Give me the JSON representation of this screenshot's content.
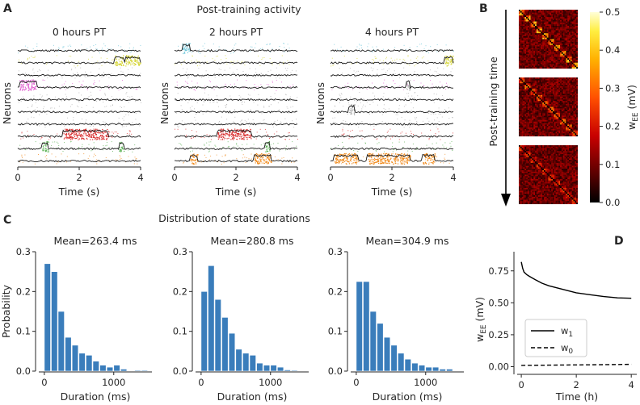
{
  "figure": {
    "panels": {
      "a": "A",
      "b": "B",
      "c": "C",
      "d": "D"
    },
    "a_title": "Post-training activity",
    "c_title": "Distribution of state durations",
    "b_axis_label": "Post-training time",
    "b_colorbar_label": "w",
    "b_colorbar_sub": "EE",
    "b_colorbar_unit": " (mV)"
  },
  "colors": {
    "bar": "#3a7dbb",
    "trace": "#1a1a1a",
    "assemblies": [
      "#6ec6d9",
      "#d6d63a",
      "#e060d0",
      "#d82828",
      "#58b050",
      "#f08a1c",
      "#8fbde0",
      "#b0b0b0"
    ]
  },
  "chart_data": [
    {
      "type": "raster",
      "panel": "A",
      "title": "0 hours PT",
      "xlabel": "Time (s)",
      "ylabel": "Neurons",
      "xlim": [
        0,
        4
      ],
      "xticks": [
        "0",
        "2",
        "4"
      ],
      "assembly_activations": [
        {
          "row": 1,
          "assembly": 1,
          "start": 3.15,
          "end": 3.45
        },
        {
          "row": 1,
          "assembly": 1,
          "start": 3.5,
          "end": 4.0
        },
        {
          "row": 3,
          "assembly": 2,
          "start": 0.05,
          "end": 0.6
        },
        {
          "row": 7,
          "assembly": 3,
          "start": 1.45,
          "end": 2.95
        },
        {
          "row": 8,
          "assembly": 4,
          "start": 0.8,
          "end": 1.0
        },
        {
          "row": 8,
          "assembly": 4,
          "start": 3.3,
          "end": 3.45
        }
      ]
    },
    {
      "type": "raster",
      "panel": "A",
      "title": "2 hours PT",
      "xlabel": "Time (s)",
      "ylabel": "Neurons",
      "xlim": [
        0,
        4
      ],
      "xticks": [
        "0",
        "2",
        "4"
      ],
      "assembly_activations": [
        {
          "row": 0,
          "assembly": 0,
          "start": 0.25,
          "end": 0.5
        },
        {
          "row": 7,
          "assembly": 3,
          "start": 1.4,
          "end": 2.5
        },
        {
          "row": 8,
          "assembly": 4,
          "start": 2.95,
          "end": 3.1
        },
        {
          "row": 9,
          "assembly": 5,
          "start": 0.5,
          "end": 0.75
        },
        {
          "row": 9,
          "assembly": 5,
          "start": 2.6,
          "end": 3.15
        }
      ]
    },
    {
      "type": "raster",
      "panel": "A",
      "title": "4 hours PT",
      "xlabel": "Time (s)",
      "ylabel": "Neurons",
      "xlim": [
        0,
        4
      ],
      "xticks": [
        "0",
        "2",
        "4"
      ],
      "assembly_activations": [
        {
          "row": 1,
          "assembly": 1,
          "start": 3.7,
          "end": 4.0
        },
        {
          "row": 3,
          "assembly": 7,
          "start": 2.45,
          "end": 2.6
        },
        {
          "row": 5,
          "assembly": 7,
          "start": 0.6,
          "end": 0.8
        },
        {
          "row": 9,
          "assembly": 5,
          "start": 0.1,
          "end": 0.9
        },
        {
          "row": 9,
          "assembly": 5,
          "start": 1.2,
          "end": 2.6
        },
        {
          "row": 9,
          "assembly": 5,
          "start": 3.0,
          "end": 3.4
        }
      ]
    },
    {
      "type": "heatmap",
      "panel": "B",
      "description_rows": [
        "early",
        "middle",
        "late"
      ],
      "num_assemblies": 10,
      "colorbar": {
        "min": 0.0,
        "max": 0.5,
        "ticks": [
          "0.0",
          "0.1",
          "0.2",
          "0.3",
          "0.4",
          "0.5"
        ]
      },
      "within_assembly_weight": [
        0.38,
        0.3,
        0.24
      ],
      "background_weight": 0.1
    },
    {
      "type": "bar",
      "panel": "C",
      "title": "Mean=263.4 ms",
      "xlabel": "Duration (ms)",
      "ylabel": "Probability",
      "bin_width_ms": 100,
      "x": [
        50,
        150,
        250,
        350,
        450,
        550,
        650,
        750,
        850,
        950,
        1050,
        1150,
        1250,
        1350,
        1450
      ],
      "values": [
        0.27,
        0.25,
        0.15,
        0.085,
        0.065,
        0.045,
        0.04,
        0.025,
        0.015,
        0.01,
        0.015,
        0.005,
        0.0,
        0.002,
        0.002
      ],
      "xlim": [
        -80,
        1550
      ],
      "ylim": [
        0,
        0.3
      ],
      "xticks": [
        "0",
        "1000"
      ],
      "yticks": [
        "0.0",
        "0.1",
        "0.2",
        "0.3"
      ]
    },
    {
      "type": "bar",
      "panel": "C",
      "title": "Mean=280.8 ms",
      "xlabel": "Duration (ms)",
      "ylabel": "",
      "bin_width_ms": 100,
      "x": [
        50,
        150,
        250,
        350,
        450,
        550,
        650,
        750,
        850,
        950,
        1050,
        1150,
        1250,
        1350
      ],
      "values": [
        0.2,
        0.265,
        0.18,
        0.135,
        0.095,
        0.055,
        0.045,
        0.04,
        0.02,
        0.015,
        0.015,
        0.01,
        0.003,
        0.002
      ],
      "xlim": [
        -80,
        1550
      ],
      "ylim": [
        0,
        0.3
      ],
      "xticks": [
        "0",
        "1000"
      ],
      "yticks": [
        "0.0",
        "0.1",
        "0.2",
        "0.3"
      ]
    },
    {
      "type": "bar",
      "panel": "C",
      "title": "Mean=304.9 ms",
      "xlabel": "Duration (ms)",
      "ylabel": "",
      "bin_width_ms": 100,
      "x": [
        50,
        150,
        250,
        350,
        450,
        550,
        650,
        750,
        850,
        950,
        1050,
        1150,
        1250,
        1350
      ],
      "values": [
        0.225,
        0.225,
        0.15,
        0.12,
        0.085,
        0.065,
        0.045,
        0.03,
        0.02,
        0.015,
        0.01,
        0.01,
        0.005,
        0.005
      ],
      "xlim": [
        -80,
        1550
      ],
      "ylim": [
        0,
        0.3
      ],
      "xticks": [
        "0",
        "1000"
      ],
      "yticks": [
        "0.0",
        "0.1",
        "0.2",
        "0.3"
      ]
    },
    {
      "type": "line",
      "panel": "D",
      "xlabel": "Time (h)",
      "ylabel": "w",
      "ylabel_sub": "EE",
      "ylabel_unit": " (mV)",
      "xlim": [
        -0.15,
        4.2
      ],
      "ylim": [
        -0.06,
        0.9
      ],
      "xticks": [
        "0",
        "2",
        "4"
      ],
      "yticks": [
        "0.00",
        "0.25",
        "0.50",
        "0.75"
      ],
      "legend_loc": "lower-left",
      "series": [
        {
          "name": "w",
          "sub": "1",
          "style": "solid",
          "x": [
            0,
            0.05,
            0.1,
            0.2,
            0.3,
            0.5,
            0.75,
            1.0,
            1.5,
            2.0,
            2.5,
            3.0,
            3.5,
            4.0
          ],
          "values": [
            0.82,
            0.77,
            0.74,
            0.72,
            0.705,
            0.68,
            0.655,
            0.635,
            0.605,
            0.58,
            0.565,
            0.55,
            0.54,
            0.535
          ]
        },
        {
          "name": "w",
          "sub": "0",
          "style": "dashed",
          "x": [
            0,
            1,
            2,
            3,
            4
          ],
          "values": [
            0.01,
            0.012,
            0.014,
            0.016,
            0.018
          ]
        }
      ]
    }
  ]
}
